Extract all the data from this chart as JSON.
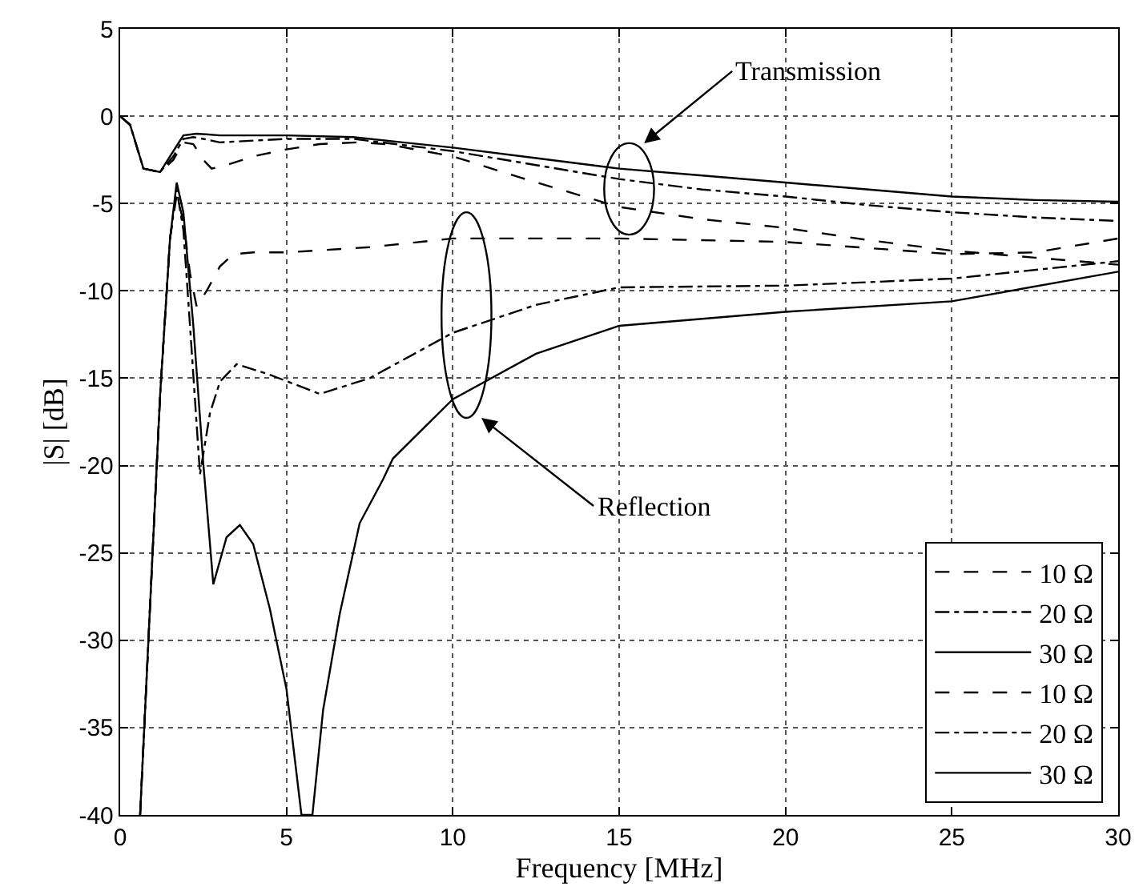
{
  "chart_data": {
    "type": "line",
    "xlabel": "Frequency [MHz]",
    "ylabel": "|S| [dB]",
    "xlim": [
      0,
      30
    ],
    "ylim": [
      -40,
      5
    ],
    "xticks": [
      0,
      5,
      10,
      15,
      20,
      25,
      30
    ],
    "yticks": [
      -40,
      -35,
      -30,
      -25,
      -20,
      -15,
      -10,
      -5,
      0,
      5
    ],
    "grid": true,
    "legend": "bottom right",
    "marker": "none",
    "series": [
      {
        "name": "10 Ω",
        "color": "#000000",
        "line_style": "dashed",
        "x": [
          0,
          0.3,
          0.7,
          1.2,
          1.6,
          1.9,
          2.2,
          2.5,
          2.75,
          3.2,
          4,
          5,
          6,
          7.1,
          8,
          10,
          12,
          15,
          17.5,
          20,
          22.5,
          25,
          27.5,
          30
        ],
        "values": [
          0,
          -0.5,
          -3,
          -3.2,
          -2.5,
          -1.5,
          -1.6,
          -2.5,
          -3.0,
          -2.8,
          -2.3,
          -1.9,
          -1.6,
          -1.5,
          -1.6,
          -2.3,
          -3.5,
          -5.2,
          -5.9,
          -6.4,
          -7.1,
          -7.7,
          -8.1,
          -8.5
        ]
      },
      {
        "name": "20 Ω",
        "color": "#000000",
        "line_style": "dashdot",
        "x": [
          0,
          0.3,
          0.7,
          1.2,
          1.6,
          1.9,
          2.2,
          2.5,
          3,
          4,
          5,
          7,
          10,
          12.5,
          15,
          17.5,
          20,
          22.5,
          25,
          27.5,
          30
        ],
        "values": [
          0,
          -0.5,
          -3,
          -3.2,
          -2.3,
          -1.3,
          -1.2,
          -1.3,
          -1.5,
          -1.4,
          -1.3,
          -1.3,
          -2.0,
          -2.8,
          -3.6,
          -4.2,
          -4.6,
          -5.1,
          -5.5,
          -5.8,
          -6.0
        ]
      },
      {
        "name": "30 Ω",
        "color": "#000000",
        "line_style": "solid",
        "x": [
          0,
          0.3,
          0.7,
          1.2,
          1.6,
          1.9,
          2.3,
          3,
          5,
          7,
          10,
          12.5,
          15,
          17.5,
          20,
          22.5,
          25,
          27.5,
          30
        ],
        "values": [
          0,
          -0.5,
          -3,
          -3.2,
          -2.0,
          -1.1,
          -1.0,
          -1.1,
          -1.1,
          -1.2,
          -1.8,
          -2.4,
          -3.0,
          -3.4,
          -3.8,
          -4.2,
          -4.6,
          -4.8,
          -4.9
        ]
      },
      {
        "name": "10 Ω",
        "color": "#000000",
        "line_style": "dashed",
        "x": [
          0.6,
          0.9,
          1.2,
          1.5,
          1.7,
          1.9,
          2.1,
          2.3,
          2.6,
          3.0,
          3.4,
          4,
          5,
          7.5,
          10,
          15,
          20,
          25,
          27.5,
          30
        ],
        "values": [
          -40,
          -28,
          -16,
          -7,
          -4.5,
          -6,
          -9,
          -10.9,
          -10.0,
          -8.6,
          -7.9,
          -7.8,
          -7.8,
          -7.5,
          -7.0,
          -7.0,
          -7.2,
          -7.9,
          -7.8,
          -7.0
        ]
      },
      {
        "name": "20 Ω",
        "color": "#000000",
        "line_style": "dashdot",
        "x": [
          0.6,
          0.9,
          1.2,
          1.5,
          1.7,
          1.9,
          2.1,
          2.4,
          2.7,
          3.0,
          3.5,
          4.5,
          6,
          7.5,
          10,
          12.5,
          15,
          20,
          25,
          30
        ],
        "values": [
          -40,
          -28,
          -16,
          -7,
          -4.2,
          -6.5,
          -12,
          -20.5,
          -17,
          -15.2,
          -14.2,
          -14.8,
          -15.9,
          -15.0,
          -12.4,
          -10.8,
          -9.8,
          -9.7,
          -9.3,
          -8.3
        ]
      },
      {
        "name": "30 Ω",
        "color": "#000000",
        "line_style": "solid",
        "x": [
          0.6,
          0.9,
          1.2,
          1.5,
          1.7,
          1.9,
          2.2,
          2.5,
          2.8,
          3.2,
          3.6,
          4.0,
          4.5,
          5.0,
          5.45,
          5.78,
          6.1,
          6.6,
          7.2,
          7.9,
          8.2,
          10,
          12.5,
          15,
          20,
          25,
          30
        ],
        "values": [
          -40,
          -28,
          -16,
          -7,
          -3.8,
          -5.5,
          -12,
          -19.9,
          -26.8,
          -24.1,
          -23.4,
          -24.5,
          -28.2,
          -32.8,
          -40,
          -40,
          -34,
          -28.5,
          -23.3,
          -20.8,
          -19.6,
          -16.2,
          -13.6,
          -12.0,
          -11.2,
          -10.6,
          -8.9
        ]
      }
    ],
    "annotations": [
      "Transmission",
      "Reflection"
    ]
  }
}
